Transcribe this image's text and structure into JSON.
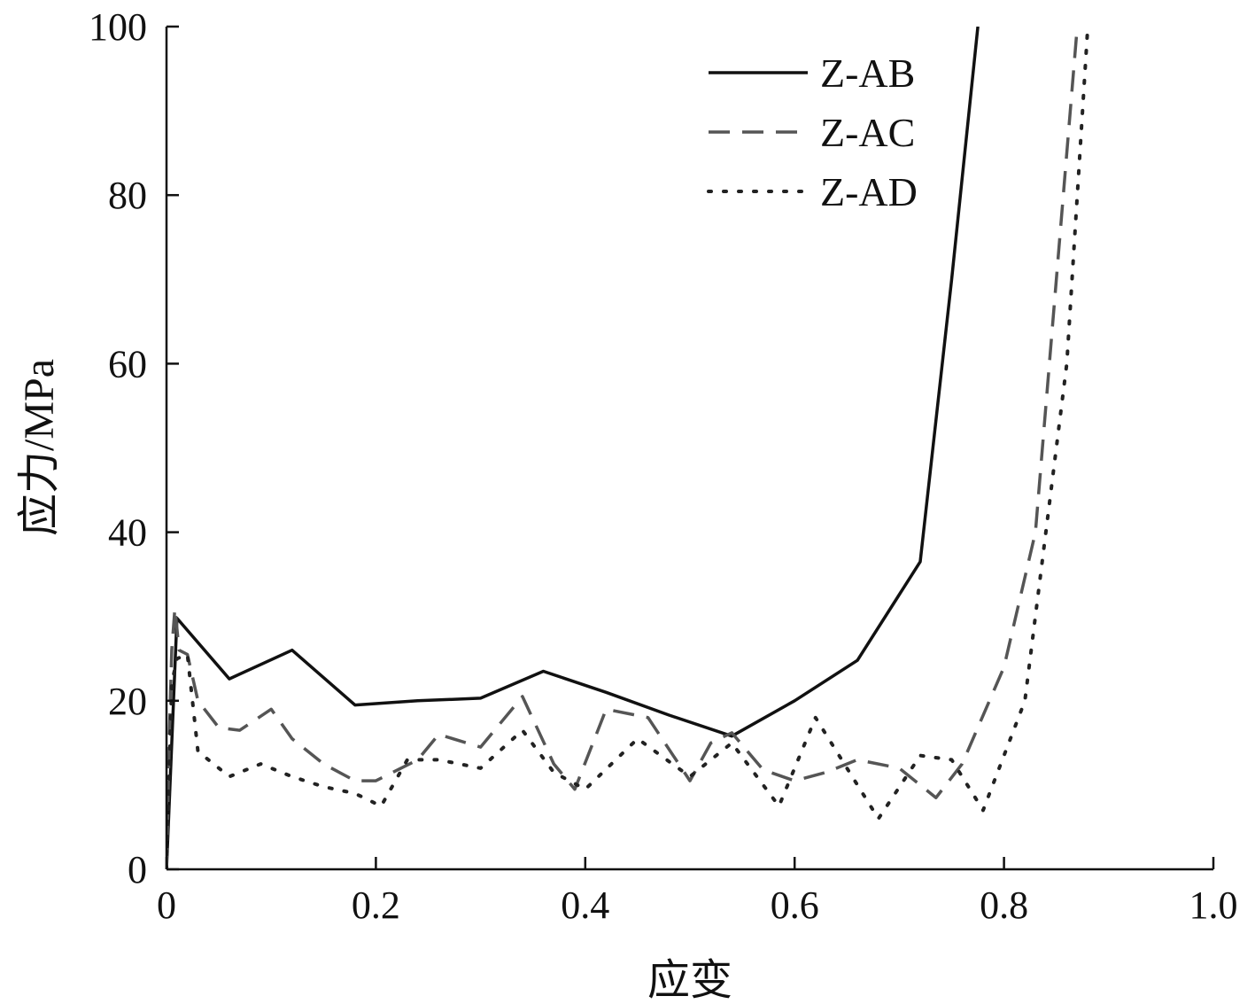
{
  "chart_data": {
    "type": "line",
    "title": "",
    "xlabel": "应变",
    "ylabel": "应力/MPa",
    "xlim": [
      0,
      1.0
    ],
    "ylim": [
      0,
      100
    ],
    "xticks": [
      "0",
      "0.2",
      "0.4",
      "0.6",
      "0.8",
      "1.0"
    ],
    "xtick_values": [
      0,
      0.2,
      0.4,
      0.6,
      0.8,
      1.0
    ],
    "yticks": [
      "0",
      "20",
      "40",
      "60",
      "80",
      "100"
    ],
    "ytick_values": [
      0,
      20,
      40,
      60,
      80,
      100
    ],
    "grid": false,
    "legend_position": "top-right",
    "series": [
      {
        "name": "Z-AB",
        "style": "solid",
        "color": "#111111",
        "points": [
          [
            0.0,
            0
          ],
          [
            0.01,
            29.8
          ],
          [
            0.06,
            22.6
          ],
          [
            0.12,
            26.0
          ],
          [
            0.18,
            19.5
          ],
          [
            0.24,
            20.0
          ],
          [
            0.3,
            20.3
          ],
          [
            0.36,
            23.5
          ],
          [
            0.42,
            21.0
          ],
          [
            0.48,
            18.3
          ],
          [
            0.54,
            15.8
          ],
          [
            0.6,
            20.0
          ],
          [
            0.66,
            24.8
          ],
          [
            0.72,
            36.5
          ],
          [
            0.75,
            70.0
          ],
          [
            0.775,
            100
          ]
        ]
      },
      {
        "name": "Z-AC",
        "style": "dashed",
        "color": "#555555",
        "points": [
          [
            0.0,
            0
          ],
          [
            0.003,
            17.0
          ],
          [
            0.005,
            26.0
          ],
          [
            0.008,
            31.0
          ],
          [
            0.012,
            26.0
          ],
          [
            0.02,
            25.5
          ],
          [
            0.03,
            20.0
          ],
          [
            0.05,
            16.8
          ],
          [
            0.07,
            16.5
          ],
          [
            0.1,
            19.0
          ],
          [
            0.12,
            15.5
          ],
          [
            0.15,
            12.5
          ],
          [
            0.18,
            10.5
          ],
          [
            0.2,
            10.5
          ],
          [
            0.24,
            13.0
          ],
          [
            0.26,
            16.0
          ],
          [
            0.3,
            14.5
          ],
          [
            0.34,
            20.5
          ],
          [
            0.37,
            12.5
          ],
          [
            0.39,
            9.5
          ],
          [
            0.42,
            19.0
          ],
          [
            0.46,
            18.0
          ],
          [
            0.5,
            10.5
          ],
          [
            0.52,
            15.0
          ],
          [
            0.54,
            16.2
          ],
          [
            0.57,
            11.8
          ],
          [
            0.6,
            10.5
          ],
          [
            0.63,
            11.5
          ],
          [
            0.66,
            13.0
          ],
          [
            0.7,
            12.0
          ],
          [
            0.735,
            8.5
          ],
          [
            0.76,
            12.5
          ],
          [
            0.8,
            24.0
          ],
          [
            0.83,
            40.0
          ],
          [
            0.85,
            70.0
          ],
          [
            0.87,
            100
          ]
        ]
      },
      {
        "name": "Z-AD",
        "style": "dotted",
        "color": "#222222",
        "points": [
          [
            0.0,
            0
          ],
          [
            0.005,
            22.0
          ],
          [
            0.01,
            25.0
          ],
          [
            0.02,
            25.5
          ],
          [
            0.03,
            14.0
          ],
          [
            0.06,
            11.0
          ],
          [
            0.09,
            12.5
          ],
          [
            0.12,
            11.0
          ],
          [
            0.15,
            9.8
          ],
          [
            0.18,
            9.0
          ],
          [
            0.205,
            7.5
          ],
          [
            0.23,
            13.0
          ],
          [
            0.26,
            13.0
          ],
          [
            0.3,
            12.0
          ],
          [
            0.34,
            16.5
          ],
          [
            0.37,
            11.5
          ],
          [
            0.4,
            9.5
          ],
          [
            0.45,
            15.5
          ],
          [
            0.5,
            11.0
          ],
          [
            0.54,
            15.0
          ],
          [
            0.585,
            7.5
          ],
          [
            0.62,
            18.0
          ],
          [
            0.65,
            12.0
          ],
          [
            0.68,
            6.0
          ],
          [
            0.72,
            13.5
          ],
          [
            0.75,
            13.0
          ],
          [
            0.78,
            7.0
          ],
          [
            0.82,
            20.0
          ],
          [
            0.86,
            60.0
          ],
          [
            0.88,
            100
          ]
        ]
      }
    ]
  }
}
